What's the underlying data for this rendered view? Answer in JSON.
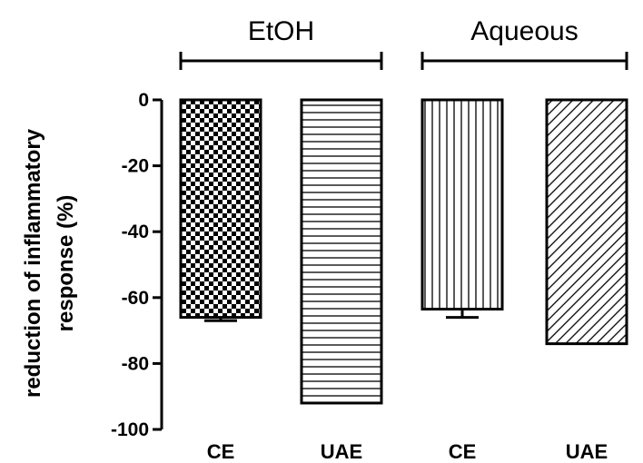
{
  "chart_data": {
    "type": "bar",
    "title": "",
    "xlabel": "",
    "ylabel": "reduction of inflammatory response (%)",
    "ylabel_lines": [
      "reduction of inflammatory",
      "response (%)"
    ],
    "ylim": [
      -100,
      0
    ],
    "yticks": [
      0,
      -20,
      -40,
      -60,
      -80,
      -100
    ],
    "categories": [
      "CE",
      "UAE",
      "CE",
      "UAE"
    ],
    "groups": [
      {
        "name": "EtOH",
        "categories": [
          0,
          1
        ]
      },
      {
        "name": "Aqueous",
        "categories": [
          2,
          3
        ]
      }
    ],
    "values": [
      -66,
      -92,
      -63.5,
      -74
    ],
    "errors": [
      1,
      0,
      2.5,
      0
    ],
    "patterns": [
      "checker",
      "horizontal-lines",
      "vertical-lines",
      "diagonal-lines"
    ],
    "grid": false,
    "legend": "none"
  }
}
